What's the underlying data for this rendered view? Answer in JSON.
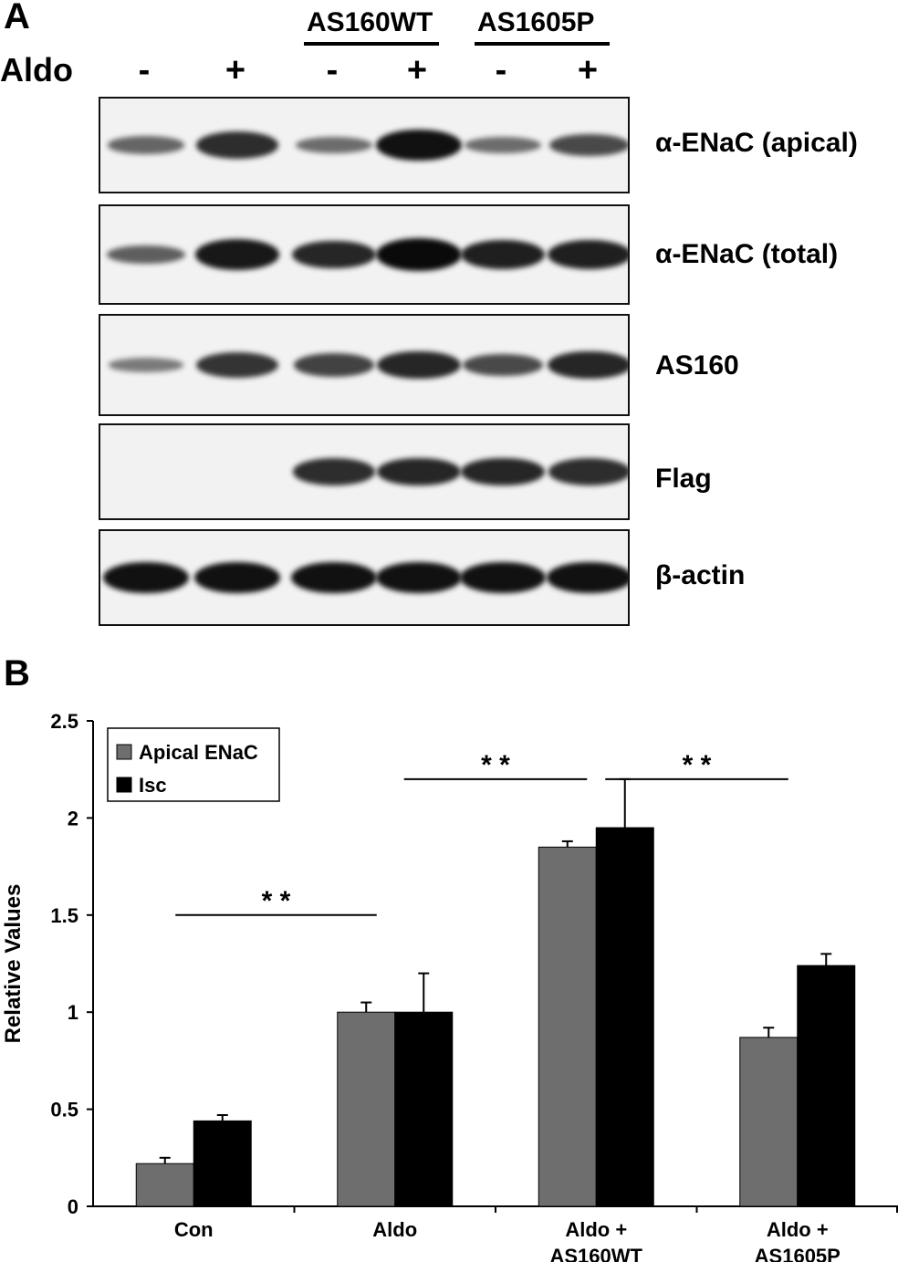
{
  "panel_a": {
    "letter": "A",
    "row_label": "Aldo",
    "groups": [
      {
        "label": "AS160WT"
      },
      {
        "label": "AS1605P"
      }
    ],
    "lanes": [
      "-",
      "+",
      "-",
      "+",
      "-",
      "+"
    ],
    "blots": [
      {
        "label": "α-ENaC (apical)",
        "intensities": [
          0.35,
          0.75,
          0.3,
          0.95,
          0.3,
          0.55
        ]
      },
      {
        "label": "α-ENaC (total)",
        "intensities": [
          0.4,
          0.9,
          0.8,
          1.0,
          0.85,
          0.85
        ]
      },
      {
        "label": "AS160",
        "intensities": [
          0.2,
          0.7,
          0.6,
          0.8,
          0.55,
          0.8
        ]
      },
      {
        "label": "Flag",
        "intensities": [
          0,
          0,
          0.75,
          0.8,
          0.8,
          0.75
        ]
      },
      {
        "label": "β-actin",
        "intensities": [
          0.95,
          0.95,
          0.95,
          0.95,
          0.95,
          0.95
        ]
      }
    ]
  },
  "panel_b": {
    "letter": "B"
  },
  "colors": {
    "apical": "#6e6e6e",
    "isc": "#000000",
    "background": "#ffffff"
  },
  "chart_data": {
    "type": "bar",
    "categories": [
      [
        "Con"
      ],
      [
        "Aldo"
      ],
      [
        "Aldo +",
        "AS160WT"
      ],
      [
        "Aldo +",
        "AS1605P"
      ]
    ],
    "ylabel": "Relative Values",
    "ylim": [
      0,
      2.5
    ],
    "yticks": [
      "0",
      "0.5",
      "1",
      "1.5",
      "2",
      "2.5"
    ],
    "grid": false,
    "legend_position": "top-left",
    "series": [
      {
        "name": "Apical ENaC",
        "values": [
          0.22,
          1.0,
          1.85,
          0.87
        ],
        "errors": [
          0.03,
          0.05,
          0.03,
          0.05
        ]
      },
      {
        "name": "Isc",
        "values": [
          0.44,
          1.0,
          1.95,
          1.24
        ],
        "errors": [
          0.03,
          0.2,
          0.25,
          0.06
        ]
      }
    ],
    "annotations": [
      {
        "text": "* *",
        "from": 0,
        "to": 1,
        "y": 1.5
      },
      {
        "text": "* *",
        "from": 1,
        "to": 2,
        "y": 2.2
      },
      {
        "text": "* *",
        "from": 2,
        "to": 3,
        "y": 2.2
      }
    ]
  }
}
